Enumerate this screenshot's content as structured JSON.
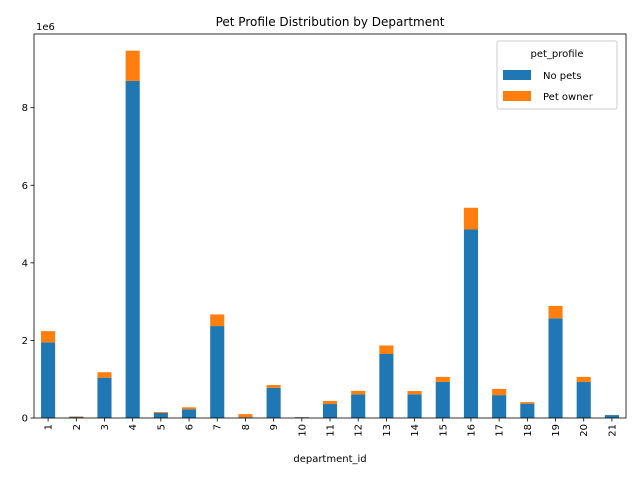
{
  "chart_data": {
    "type": "bar",
    "stacked": true,
    "title": "Pet Profile Distribution by Department",
    "xlabel": "department_id",
    "ylabel": "",
    "y_offset_label": "1e6",
    "categories": [
      "1",
      "2",
      "3",
      "4",
      "5",
      "6",
      "7",
      "8",
      "9",
      "10",
      "11",
      "12",
      "13",
      "14",
      "15",
      "16",
      "17",
      "18",
      "19",
      "20",
      "21"
    ],
    "series": [
      {
        "name": "No pets",
        "color": "#1f77b4",
        "values": [
          1950000,
          25000,
          1040000,
          8690000,
          130000,
          225000,
          2370000,
          20000,
          780000,
          20000,
          360000,
          610000,
          1650000,
          610000,
          930000,
          4860000,
          590000,
          370000,
          2570000,
          930000,
          75000
        ]
      },
      {
        "name": "Pet owner",
        "color": "#ff7f0e",
        "values": [
          290000,
          15000,
          140000,
          780000,
          25000,
          50000,
          300000,
          80000,
          70000,
          5000,
          80000,
          90000,
          220000,
          85000,
          130000,
          560000,
          160000,
          40000,
          320000,
          130000,
          5000
        ]
      }
    ],
    "ylim": [
      0,
      9900000
    ],
    "yticks": [
      0,
      2000000,
      4000000,
      6000000,
      8000000
    ],
    "ytick_labels": [
      "0",
      "2",
      "4",
      "6",
      "8"
    ],
    "legend": {
      "title": "pet_profile",
      "position": "top-right"
    },
    "grid": false
  }
}
